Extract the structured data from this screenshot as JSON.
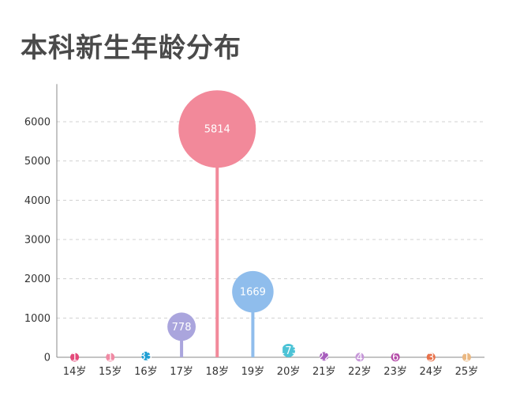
{
  "chart_data": {
    "type": "scatter",
    "title": "本科新生年龄分布",
    "xlabel": "",
    "ylabel": "",
    "ylim": [
      0,
      7000
    ],
    "yticks": [
      0,
      1000,
      2000,
      3000,
      4000,
      5000,
      6000
    ],
    "grid": true,
    "categories": [
      "14岁",
      "15岁",
      "16岁",
      "17岁",
      "18岁",
      "19岁",
      "20岁",
      "21岁",
      "22岁",
      "23岁",
      "24岁",
      "25岁"
    ],
    "values": [
      1,
      1,
      33,
      778,
      5814,
      1669,
      173,
      22,
      4,
      6,
      3,
      1
    ],
    "colors": [
      "#e4497a",
      "#f08aa4",
      "#1e9fd4",
      "#aaa5dd",
      "#f2899a",
      "#8fbdec",
      "#4cc3d6",
      "#a75dbd",
      "#c799d9",
      "#b44aa8",
      "#e8714a",
      "#eab882"
    ]
  }
}
